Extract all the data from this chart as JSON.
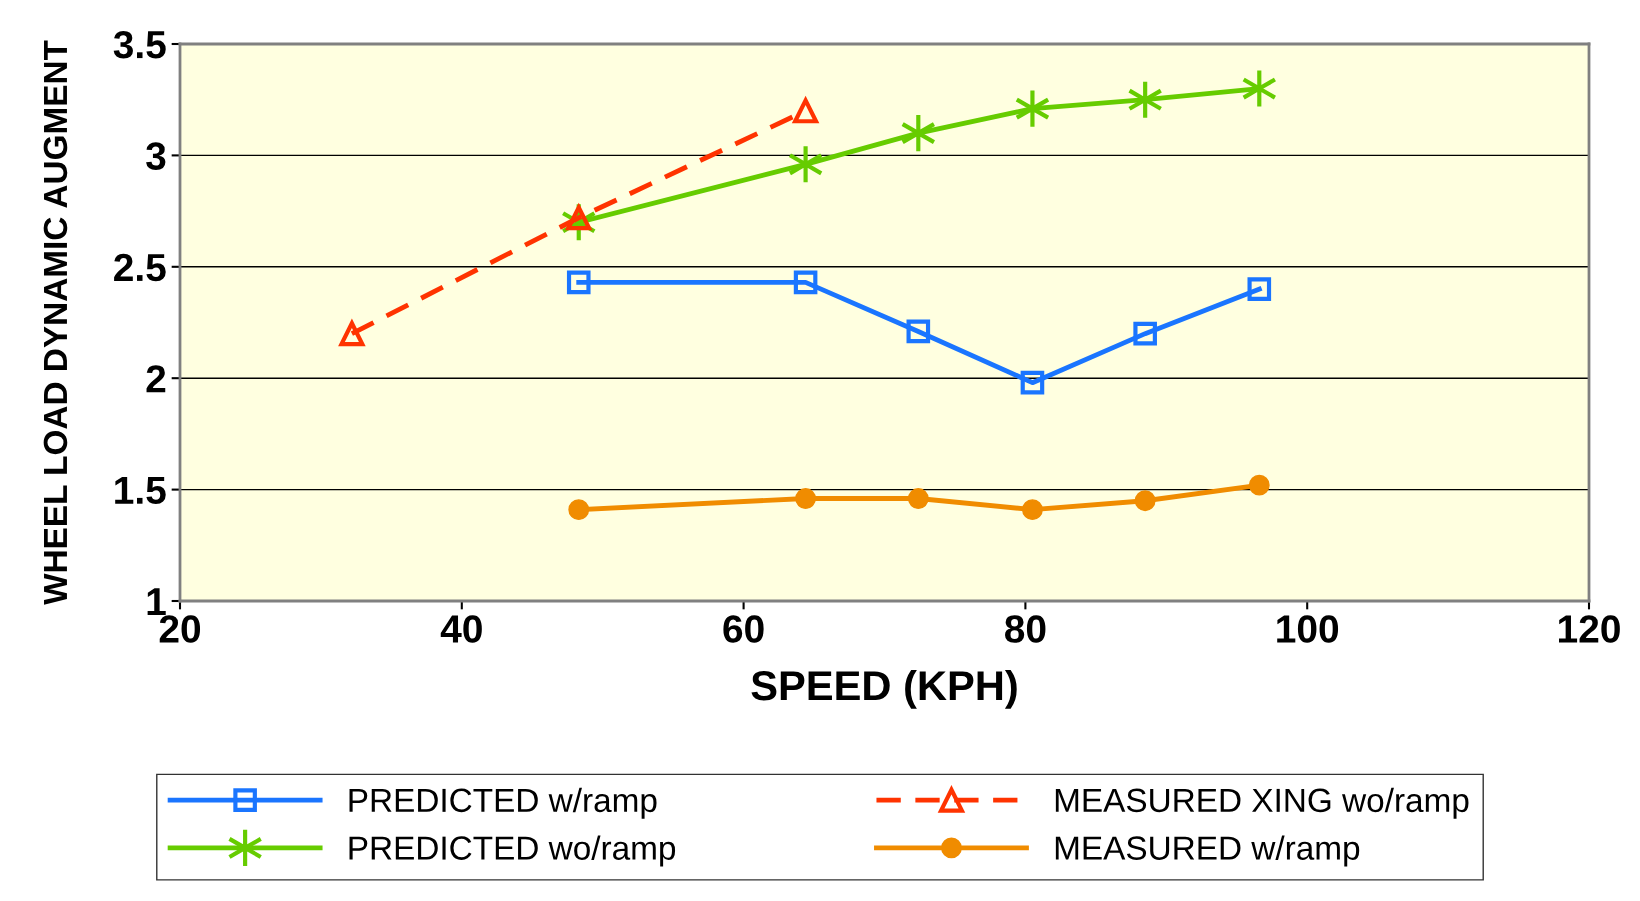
{
  "chart_data": {
    "type": "line",
    "xlabel": "SPEED (KPH)",
    "ylabel": "WHEEL LOAD DYNAMIC AUGMENT",
    "xlim": [
      20,
      120
    ],
    "xticks": [
      20,
      40,
      60,
      80,
      100,
      120
    ],
    "ylim": [
      1,
      3.5
    ],
    "yticks": [
      1,
      1.5,
      2,
      2.5,
      3,
      3.5
    ],
    "grid": "y",
    "legend": "bottom",
    "series": [
      {
        "name": "PREDICTED w/ramp",
        "color": "#1a75ff",
        "marker": "square",
        "line_style": "solid",
        "x": [
          48.3,
          64.4,
          72.4,
          80.5,
          88.5,
          96.6
        ],
        "values": [
          2.43,
          2.43,
          2.21,
          1.98,
          2.2,
          2.4
        ]
      },
      {
        "name": "PREDICTED wo/ramp",
        "color": "#66cc00",
        "marker": "cross",
        "line_style": "solid",
        "x": [
          48.3,
          64.4,
          72.4,
          80.5,
          88.5,
          96.6
        ],
        "values": [
          2.7,
          2.96,
          3.1,
          3.21,
          3.25,
          3.3
        ]
      },
      {
        "name": "MEASURED XING wo/ramp",
        "color": "#ff3300",
        "marker": "triangle",
        "line_style": "dashed",
        "x": [
          32.2,
          48.3,
          64.4
        ],
        "values": [
          2.2,
          2.72,
          3.2
        ]
      },
      {
        "name": "MEASURED w/ramp",
        "color": "#f08c00",
        "marker": "circle",
        "line_style": "solid",
        "x": [
          48.3,
          64.4,
          72.4,
          80.5,
          88.5,
          96.6
        ],
        "values": [
          1.41,
          1.46,
          1.46,
          1.41,
          1.45,
          1.52
        ]
      }
    ]
  }
}
